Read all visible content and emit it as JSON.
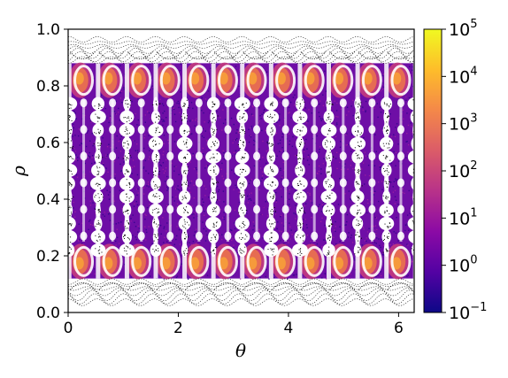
{
  "chart_data": {
    "type": "heatmap",
    "title": "",
    "xlabel": "θ",
    "ylabel": "ρ",
    "xlim": [
      0,
      6.283
    ],
    "ylim": [
      0,
      1.0
    ],
    "xticks": [
      0,
      2,
      4,
      6
    ],
    "yticks": [
      0.0,
      0.2,
      0.4,
      0.6,
      0.8,
      1.0
    ],
    "xtick_labels": [
      "0",
      "2",
      "4",
      "6"
    ],
    "ytick_labels": [
      "0.0",
      "0.2",
      "0.4",
      "0.6",
      "0.8",
      "1.0"
    ],
    "colorbar": {
      "scale": "log",
      "range": [
        0.1,
        100000
      ],
      "ticks": [
        {
          "base": "10",
          "exp": "−1",
          "value": 0.1
        },
        {
          "base": "10",
          "exp": "0",
          "value": 1
        },
        {
          "base": "10",
          "exp": "1",
          "value": 10
        },
        {
          "base": "10",
          "exp": "2",
          "value": 100
        },
        {
          "base": "10",
          "exp": "3",
          "value": 1000
        },
        {
          "base": "10",
          "exp": "4",
          "value": 10000
        },
        {
          "base": "10",
          "exp": "5",
          "value": 100000
        }
      ],
      "colormap": "plasma",
      "colors": [
        "#0d0887",
        "#5302a3",
        "#8b0aa5",
        "#b83289",
        "#db5c68",
        "#f48849",
        "#febd2a",
        "#f0f921"
      ]
    },
    "structure": {
      "island_chains": 12,
      "inner_band_rho": [
        0.12,
        0.88
      ],
      "outer_edge_rho": [
        0.03,
        0.97
      ],
      "high_density_rows_rho": [
        0.18,
        0.82
      ]
    },
    "grid": false,
    "legend": "none"
  }
}
